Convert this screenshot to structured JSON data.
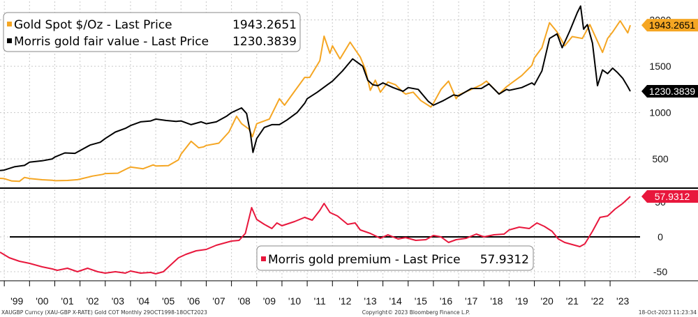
{
  "colors": {
    "gold": "#f5a623",
    "fair": "#000000",
    "premium": "#e8173c",
    "grid": "#c8c8c8"
  },
  "chart_data": [
    {
      "type": "line",
      "panel": "top",
      "ylim": [
        200,
        2200
      ],
      "yticks": [
        500,
        1000,
        1500,
        2000
      ],
      "ytick_labels": [
        "500",
        "1000",
        "1500",
        "2000"
      ],
      "series": [
        {
          "name": "Gold Spot $/Oz",
          "legend": "Gold Spot $/Oz - Last Price",
          "last_label": "1943.2651",
          "color_key": "gold",
          "points": [
            [
              1998.83,
              290
            ],
            [
              1999.0,
              287
            ],
            [
              1999.3,
              262
            ],
            [
              1999.6,
              258
            ],
            [
              1999.8,
              300
            ],
            [
              2000.0,
              289
            ],
            [
              2000.5,
              275
            ],
            [
              2000.9,
              270
            ],
            [
              2001.0,
              265
            ],
            [
              2001.5,
              268
            ],
            [
              2001.9,
              276
            ],
            [
              2002.0,
              282
            ],
            [
              2002.5,
              315
            ],
            [
              2002.9,
              333
            ],
            [
              2003.0,
              342
            ],
            [
              2003.5,
              346
            ],
            [
              2003.9,
              400
            ],
            [
              2004.0,
              412
            ],
            [
              2004.5,
              394
            ],
            [
              2004.9,
              435
            ],
            [
              2005.0,
              424
            ],
            [
              2005.5,
              427
            ],
            [
              2005.9,
              490
            ],
            [
              2006.0,
              550
            ],
            [
              2006.4,
              690
            ],
            [
              2006.7,
              620
            ],
            [
              2006.9,
              630
            ],
            [
              2007.0,
              645
            ],
            [
              2007.5,
              670
            ],
            [
              2007.9,
              790
            ],
            [
              2008.2,
              960
            ],
            [
              2008.4,
              880
            ],
            [
              2008.7,
              820
            ],
            [
              2008.83,
              740
            ],
            [
              2009.0,
              880
            ],
            [
              2009.5,
              930
            ],
            [
              2009.9,
              1150
            ],
            [
              2010.1,
              1080
            ],
            [
              2010.5,
              1230
            ],
            [
              2010.9,
              1380
            ],
            [
              2011.1,
              1380
            ],
            [
              2011.5,
              1560
            ],
            [
              2011.67,
              1825
            ],
            [
              2011.9,
              1640
            ],
            [
              2012.0,
              1720
            ],
            [
              2012.3,
              1580
            ],
            [
              2012.7,
              1760
            ],
            [
              2012.9,
              1680
            ],
            [
              2013.1,
              1600
            ],
            [
              2013.3,
              1470
            ],
            [
              2013.5,
              1240
            ],
            [
              2013.7,
              1350
            ],
            [
              2013.9,
              1220
            ],
            [
              2014.2,
              1330
            ],
            [
              2014.5,
              1300
            ],
            [
              2014.8,
              1220
            ],
            [
              2014.9,
              1200
            ],
            [
              2015.2,
              1220
            ],
            [
              2015.5,
              1130
            ],
            [
              2015.9,
              1060
            ],
            [
              2016.0,
              1100
            ],
            [
              2016.3,
              1250
            ],
            [
              2016.6,
              1340
            ],
            [
              2016.9,
              1150
            ],
            [
              2017.0,
              1190
            ],
            [
              2017.5,
              1250
            ],
            [
              2017.9,
              1300
            ],
            [
              2018.1,
              1340
            ],
            [
              2018.6,
              1200
            ],
            [
              2018.9,
              1280
            ],
            [
              2019.0,
              1300
            ],
            [
              2019.5,
              1400
            ],
            [
              2019.9,
              1510
            ],
            [
              2020.0,
              1590
            ],
            [
              2020.3,
              1700
            ],
            [
              2020.6,
              1970
            ],
            [
              2020.9,
              1870
            ],
            [
              2021.2,
              1720
            ],
            [
              2021.5,
              1820
            ],
            [
              2021.9,
              1800
            ],
            [
              2022.2,
              1950
            ],
            [
              2022.7,
              1650
            ],
            [
              2022.9,
              1800
            ],
            [
              2023.1,
              1870
            ],
            [
              2023.4,
              1990
            ],
            [
              2023.7,
              1860
            ],
            [
              2023.8,
              1943
            ]
          ]
        },
        {
          "name": "Morris gold fair value",
          "legend": "Morris gold fair value - Last Price",
          "last_label": "1230.3839",
          "color_key": "fair",
          "points": [
            [
              1998.83,
              375
            ],
            [
              1999.0,
              380
            ],
            [
              1999.4,
              415
            ],
            [
              1999.8,
              430
            ],
            [
              2000.0,
              465
            ],
            [
              2000.5,
              480
            ],
            [
              2000.9,
              500
            ],
            [
              2001.0,
              520
            ],
            [
              2001.4,
              565
            ],
            [
              2001.8,
              560
            ],
            [
              2002.0,
              590
            ],
            [
              2002.4,
              650
            ],
            [
              2002.8,
              680
            ],
            [
              2003.0,
              720
            ],
            [
              2003.4,
              790
            ],
            [
              2003.8,
              830
            ],
            [
              2004.0,
              860
            ],
            [
              2004.4,
              900
            ],
            [
              2004.8,
              910
            ],
            [
              2005.0,
              930
            ],
            [
              2005.4,
              915
            ],
            [
              2005.8,
              905
            ],
            [
              2006.0,
              910
            ],
            [
              2006.4,
              870
            ],
            [
              2006.8,
              900
            ],
            [
              2007.0,
              880
            ],
            [
              2007.4,
              900
            ],
            [
              2007.8,
              960
            ],
            [
              2008.0,
              1000
            ],
            [
              2008.4,
              1050
            ],
            [
              2008.6,
              990
            ],
            [
              2008.75,
              780
            ],
            [
              2008.85,
              570
            ],
            [
              2009.0,
              720
            ],
            [
              2009.3,
              840
            ],
            [
              2009.6,
              870
            ],
            [
              2009.9,
              870
            ],
            [
              2010.2,
              920
            ],
            [
              2010.6,
              1000
            ],
            [
              2010.9,
              1100
            ],
            [
              2011.0,
              1150
            ],
            [
              2011.4,
              1220
            ],
            [
              2011.8,
              1300
            ],
            [
              2012.0,
              1340
            ],
            [
              2012.4,
              1450
            ],
            [
              2012.8,
              1580
            ],
            [
              2013.0,
              1540
            ],
            [
              2013.2,
              1500
            ],
            [
              2013.4,
              1350
            ],
            [
              2013.6,
              1300
            ],
            [
              2013.8,
              1290
            ],
            [
              2014.0,
              1320
            ],
            [
              2014.4,
              1270
            ],
            [
              2014.8,
              1230
            ],
            [
              2015.0,
              1270
            ],
            [
              2015.4,
              1250
            ],
            [
              2015.8,
              1120
            ],
            [
              2016.0,
              1080
            ],
            [
              2016.4,
              1130
            ],
            [
              2016.8,
              1190
            ],
            [
              2017.0,
              1180
            ],
            [
              2017.5,
              1260
            ],
            [
              2017.9,
              1260
            ],
            [
              2018.2,
              1310
            ],
            [
              2018.6,
              1200
            ],
            [
              2018.9,
              1250
            ],
            [
              2019.0,
              1240
            ],
            [
              2019.5,
              1270
            ],
            [
              2019.9,
              1320
            ],
            [
              2020.0,
              1300
            ],
            [
              2020.3,
              1450
            ],
            [
              2020.6,
              1800
            ],
            [
              2020.9,
              1850
            ],
            [
              2021.1,
              1700
            ],
            [
              2021.4,
              1880
            ],
            [
              2021.7,
              2080
            ],
            [
              2021.83,
              2150
            ],
            [
              2021.95,
              1900
            ],
            [
              2022.1,
              1950
            ],
            [
              2022.3,
              1750
            ],
            [
              2022.5,
              1290
            ],
            [
              2022.7,
              1460
            ],
            [
              2022.9,
              1420
            ],
            [
              2023.1,
              1480
            ],
            [
              2023.3,
              1430
            ],
            [
              2023.5,
              1370
            ],
            [
              2023.7,
              1280
            ],
            [
              2023.8,
              1230
            ]
          ]
        }
      ]
    },
    {
      "type": "line",
      "panel": "bottom",
      "ylim": [
        -62,
        68
      ],
      "yticks": [
        -50,
        0,
        50
      ],
      "ytick_labels": [
        "-50",
        "0",
        "50"
      ],
      "zero_line": 0,
      "series": [
        {
          "name": "Morris gold premium",
          "legend": "Morris gold premium - Last Price",
          "last_label": "57.9312",
          "color_key": "premium",
          "points": [
            [
              1998.83,
              -22
            ],
            [
              1999.2,
              -30
            ],
            [
              1999.6,
              -35
            ],
            [
              2000.0,
              -38
            ],
            [
              2000.5,
              -43
            ],
            [
              2000.9,
              -46
            ],
            [
              2001.1,
              -48
            ],
            [
              2001.5,
              -45
            ],
            [
              2001.9,
              -50
            ],
            [
              2002.3,
              -45
            ],
            [
              2002.7,
              -50
            ],
            [
              2003.0,
              -52
            ],
            [
              2003.4,
              -50
            ],
            [
              2003.8,
              -52
            ],
            [
              2004.0,
              -49
            ],
            [
              2004.4,
              -52
            ],
            [
              2004.8,
              -51
            ],
            [
              2005.0,
              -53
            ],
            [
              2005.3,
              -50
            ],
            [
              2005.6,
              -40
            ],
            [
              2005.9,
              -30
            ],
            [
              2006.2,
              -25
            ],
            [
              2006.6,
              -20
            ],
            [
              2007.0,
              -18
            ],
            [
              2007.4,
              -12
            ],
            [
              2007.8,
              -8
            ],
            [
              2008.0,
              -6
            ],
            [
              2008.3,
              -5
            ],
            [
              2008.55,
              5
            ],
            [
              2008.8,
              42
            ],
            [
              2009.0,
              25
            ],
            [
              2009.3,
              18
            ],
            [
              2009.6,
              12
            ],
            [
              2009.8,
              20
            ],
            [
              2010.0,
              16
            ],
            [
              2010.5,
              22
            ],
            [
              2010.9,
              28
            ],
            [
              2011.2,
              24
            ],
            [
              2011.5,
              38
            ],
            [
              2011.67,
              48
            ],
            [
              2011.9,
              35
            ],
            [
              2012.2,
              30
            ],
            [
              2012.6,
              18
            ],
            [
              2012.9,
              20
            ],
            [
              2013.1,
              10
            ],
            [
              2013.5,
              5
            ],
            [
              2013.9,
              -2
            ],
            [
              2014.2,
              3
            ],
            [
              2014.6,
              -3
            ],
            [
              2014.9,
              -1
            ],
            [
              2015.3,
              -5
            ],
            [
              2015.7,
              -4
            ],
            [
              2016.0,
              2
            ],
            [
              2016.3,
              0
            ],
            [
              2016.6,
              -8
            ],
            [
              2016.9,
              -4
            ],
            [
              2017.3,
              -2
            ],
            [
              2017.7,
              4
            ],
            [
              2018.0,
              0
            ],
            [
              2018.4,
              3
            ],
            [
              2018.8,
              4
            ],
            [
              2019.0,
              10
            ],
            [
              2019.4,
              14
            ],
            [
              2019.8,
              12
            ],
            [
              2020.1,
              20
            ],
            [
              2020.4,
              15
            ],
            [
              2020.7,
              8
            ],
            [
              2020.95,
              -3
            ],
            [
              2021.2,
              -8
            ],
            [
              2021.5,
              -11
            ],
            [
              2021.8,
              -14
            ],
            [
              2022.0,
              -10
            ],
            [
              2022.3,
              8
            ],
            [
              2022.6,
              28
            ],
            [
              2022.9,
              30
            ],
            [
              2023.2,
              40
            ],
            [
              2023.5,
              48
            ],
            [
              2023.8,
              58
            ]
          ]
        }
      ]
    }
  ],
  "x_axis": {
    "range": [
      1998.83,
      2023.8
    ],
    "tick_labels": [
      "'99",
      "'00",
      "'01",
      "'02",
      "'03",
      "'04",
      "'05",
      "'06",
      "'07",
      "'08",
      "'09",
      "'10",
      "'11",
      "'12",
      "'13",
      "'14",
      "'15",
      "'16",
      "'17",
      "'18",
      "'19",
      "'20",
      "'21",
      "'22",
      "'23"
    ]
  },
  "footer": {
    "left": "XAUGBP Curncy (XAU-GBP X-RATE) Gold COT  Monthly 29OCT1998-18OCT2023",
    "center": "Copyright© 2023 Bloomberg Finance L.P.",
    "right": "18-Oct-2023 11:23:34"
  }
}
